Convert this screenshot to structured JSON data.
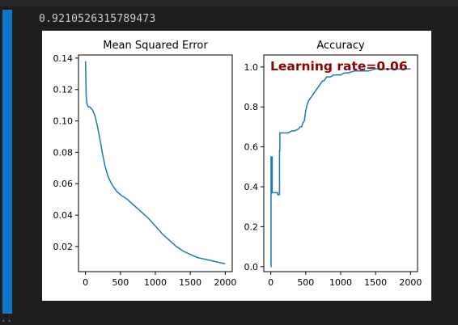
{
  "output": {
    "text": "0.9210526315789473"
  },
  "chart_data": [
    {
      "type": "line",
      "title": "Mean Squared Error",
      "xlabel": "",
      "ylabel": "",
      "xlim": [
        0,
        2000
      ],
      "ylim": [
        0.004,
        0.142
      ],
      "xticks": [
        0,
        500,
        1000,
        1500,
        2000
      ],
      "yticks": [
        0.02,
        0.04,
        0.06,
        0.08,
        0.1,
        0.12,
        0.14
      ],
      "ytick_labels": [
        "0.02",
        "0.04",
        "0.06",
        "0.08",
        "0.10",
        "0.12",
        "0.14"
      ],
      "color": "#1f77b4",
      "x": [
        0,
        5,
        10,
        20,
        40,
        60,
        80,
        100,
        130,
        160,
        200,
        240,
        280,
        320,
        360,
        400,
        450,
        500,
        600,
        700,
        800,
        900,
        1000,
        1100,
        1200,
        1300,
        1400,
        1500,
        1600,
        1700,
        1800,
        1900,
        2000
      ],
      "y": [
        0.138,
        0.128,
        0.116,
        0.111,
        0.109,
        0.109,
        0.108,
        0.107,
        0.104,
        0.099,
        0.09,
        0.08,
        0.071,
        0.065,
        0.061,
        0.058,
        0.055,
        0.053,
        0.05,
        0.046,
        0.042,
        0.038,
        0.033,
        0.028,
        0.024,
        0.02,
        0.017,
        0.015,
        0.013,
        0.012,
        0.011,
        0.01,
        0.009
      ]
    },
    {
      "type": "line",
      "title": "Accuracy",
      "xlabel": "",
      "ylabel": "",
      "xlim": [
        0,
        2000
      ],
      "ylim": [
        -0.025,
        1.06
      ],
      "xticks": [
        0,
        500,
        1000,
        1500,
        2000
      ],
      "yticks": [
        0.0,
        0.2,
        0.4,
        0.6,
        0.8,
        1.0
      ],
      "ytick_labels": [
        "0.0",
        "0.2",
        "0.4",
        "0.6",
        "0.8",
        "1.0"
      ],
      "color": "#1f77b4",
      "annotation": {
        "text": "Learning rate=0.06",
        "color": "#8b0000"
      },
      "x": [
        0,
        4,
        4,
        20,
        20,
        40,
        40,
        100,
        100,
        125,
        125,
        130,
        130,
        150,
        150,
        180,
        200,
        250,
        300,
        320,
        340,
        400,
        420,
        440,
        460,
        480,
        500,
        520,
        540,
        560,
        580,
        600,
        620,
        640,
        660,
        680,
        700,
        720,
        740,
        760,
        780,
        800,
        850,
        900,
        950,
        1000,
        1050,
        1100,
        1200,
        1300,
        1400,
        1500,
        1600,
        1700,
        1800,
        1900,
        2000
      ],
      "y": [
        0.0,
        0.0,
        0.55,
        0.55,
        0.37,
        0.37,
        0.37,
        0.37,
        0.36,
        0.36,
        0.58,
        0.58,
        0.67,
        0.67,
        0.67,
        0.67,
        0.67,
        0.67,
        0.68,
        0.68,
        0.68,
        0.69,
        0.7,
        0.7,
        0.72,
        0.73,
        0.78,
        0.81,
        0.83,
        0.84,
        0.85,
        0.86,
        0.87,
        0.88,
        0.89,
        0.9,
        0.91,
        0.92,
        0.93,
        0.93,
        0.94,
        0.95,
        0.95,
        0.96,
        0.96,
        0.96,
        0.97,
        0.97,
        0.98,
        0.98,
        0.98,
        0.99,
        0.99,
        0.99,
        0.99,
        0.99,
        0.99
      ]
    }
  ]
}
